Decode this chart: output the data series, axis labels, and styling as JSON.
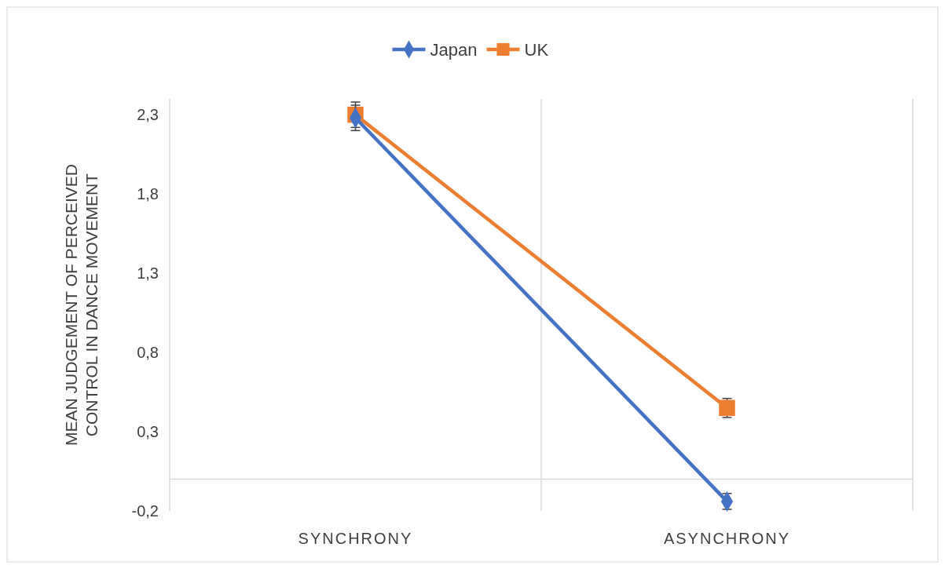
{
  "chart_data": {
    "type": "line",
    "ylabel": "MEAN JUDGEMENT OF PERCEIVED CONTROL IN DANCE MOVEMENT",
    "categories": [
      "SYNCHRONY",
      "ASYNCHRONY"
    ],
    "series": [
      {
        "name": "Japan",
        "color": "#4472c4",
        "marker": "diamond",
        "values": [
          2.28,
          -0.14
        ],
        "errors": [
          0.08,
          0.05
        ]
      },
      {
        "name": "UK",
        "color": "#ed7d31",
        "marker": "square",
        "values": [
          2.3,
          0.45
        ],
        "errors": [
          0.08,
          0.06
        ]
      }
    ],
    "ylim": [
      -0.2,
      2.4
    ],
    "yticks": [
      {
        "value": -0.2,
        "label": "-0,2"
      },
      {
        "value": 0.3,
        "label": "0,3"
      },
      {
        "value": 0.8,
        "label": "0,8"
      },
      {
        "value": 1.3,
        "label": "1,3"
      },
      {
        "value": 1.8,
        "label": "1,8"
      },
      {
        "value": 2.3,
        "label": "2,3"
      }
    ],
    "grid": "x",
    "legend": "top",
    "line_style": "solid"
  }
}
